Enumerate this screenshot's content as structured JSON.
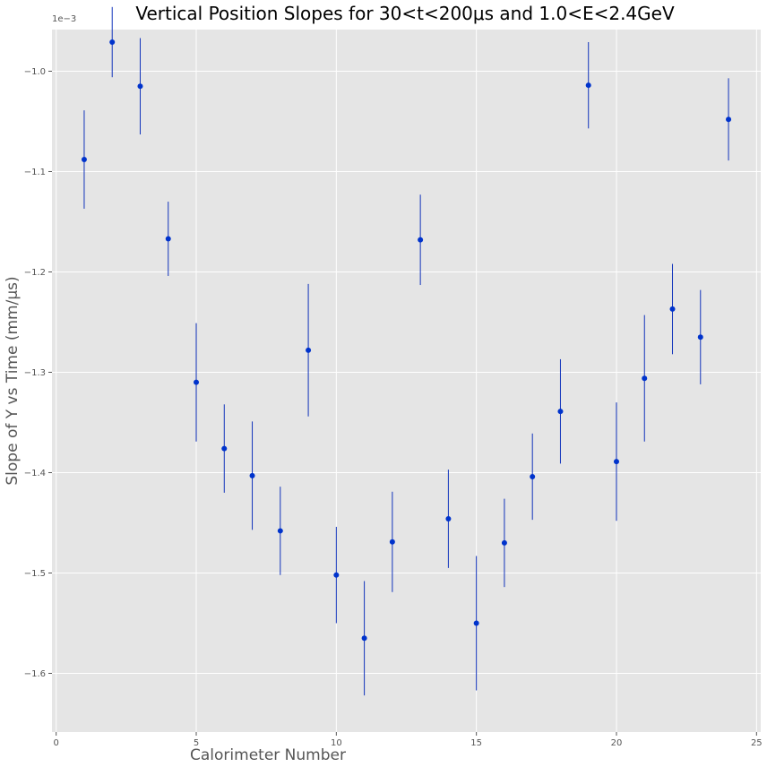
{
  "chart_data": {
    "type": "scatter",
    "title": "Vertical Position Slopes for 30<t<200μs and 1.0<E<2.4GeV",
    "xlabel": "Calorimeter Number",
    "ylabel": "Slope of Y vs Time (mm/μs)",
    "y_offset_label": "1e−3",
    "xlim": [
      -0.15,
      25.15
    ],
    "ylim": [
      -1.6585,
      -0.0009585
    ],
    "xticks": [
      0,
      5,
      10,
      15,
      20,
      25
    ],
    "xtick_labels": [
      "0",
      "5",
      "10",
      "15",
      "20",
      "25"
    ],
    "yticks": [
      -0.0016,
      -0.0015,
      -0.0014,
      -0.0013,
      -0.0012,
      -0.0011,
      -0.001
    ],
    "ytick_labels": [
      "−1.6",
      "−1.5",
      "−1.4",
      "−1.3",
      "−1.2",
      "−1.1",
      "−1.0"
    ],
    "grid": true,
    "style": "ggplot",
    "colors": {
      "background": "#E5E5E5",
      "grid": "#FFFFFF",
      "marker": "#0033CC",
      "errorbar": "#1133BB"
    },
    "series": [
      {
        "x": [
          1,
          2,
          3,
          4,
          5,
          6,
          7,
          8,
          9,
          10,
          11,
          12,
          13,
          14,
          15,
          16,
          17,
          18,
          19,
          20,
          21,
          22,
          23,
          24
        ],
        "y": [
          -0.001088,
          -0.000971,
          -0.001015,
          -0.001167,
          -0.00131,
          -0.001376,
          -0.001403,
          -0.001458,
          -0.001278,
          -0.001502,
          -0.001565,
          -0.001469,
          -0.001168,
          -0.001446,
          -0.00155,
          -0.00147,
          -0.001404,
          -0.001339,
          -0.001014,
          -0.001389,
          -0.001306,
          -0.001237,
          -0.001265,
          -0.001048
        ],
        "yerr": [
          4.9e-05,
          3.5e-05,
          4.8e-05,
          3.7e-05,
          5.9e-05,
          4.4e-05,
          5.4e-05,
          4.4e-05,
          6.6e-05,
          4.8e-05,
          5.7e-05,
          5e-05,
          4.5e-05,
          4.9e-05,
          6.7e-05,
          4.4e-05,
          4.3e-05,
          5.2e-05,
          4.3e-05,
          5.9e-05,
          6.3e-05,
          4.5e-05,
          4.7e-05,
          4.1e-05
        ]
      }
    ]
  }
}
